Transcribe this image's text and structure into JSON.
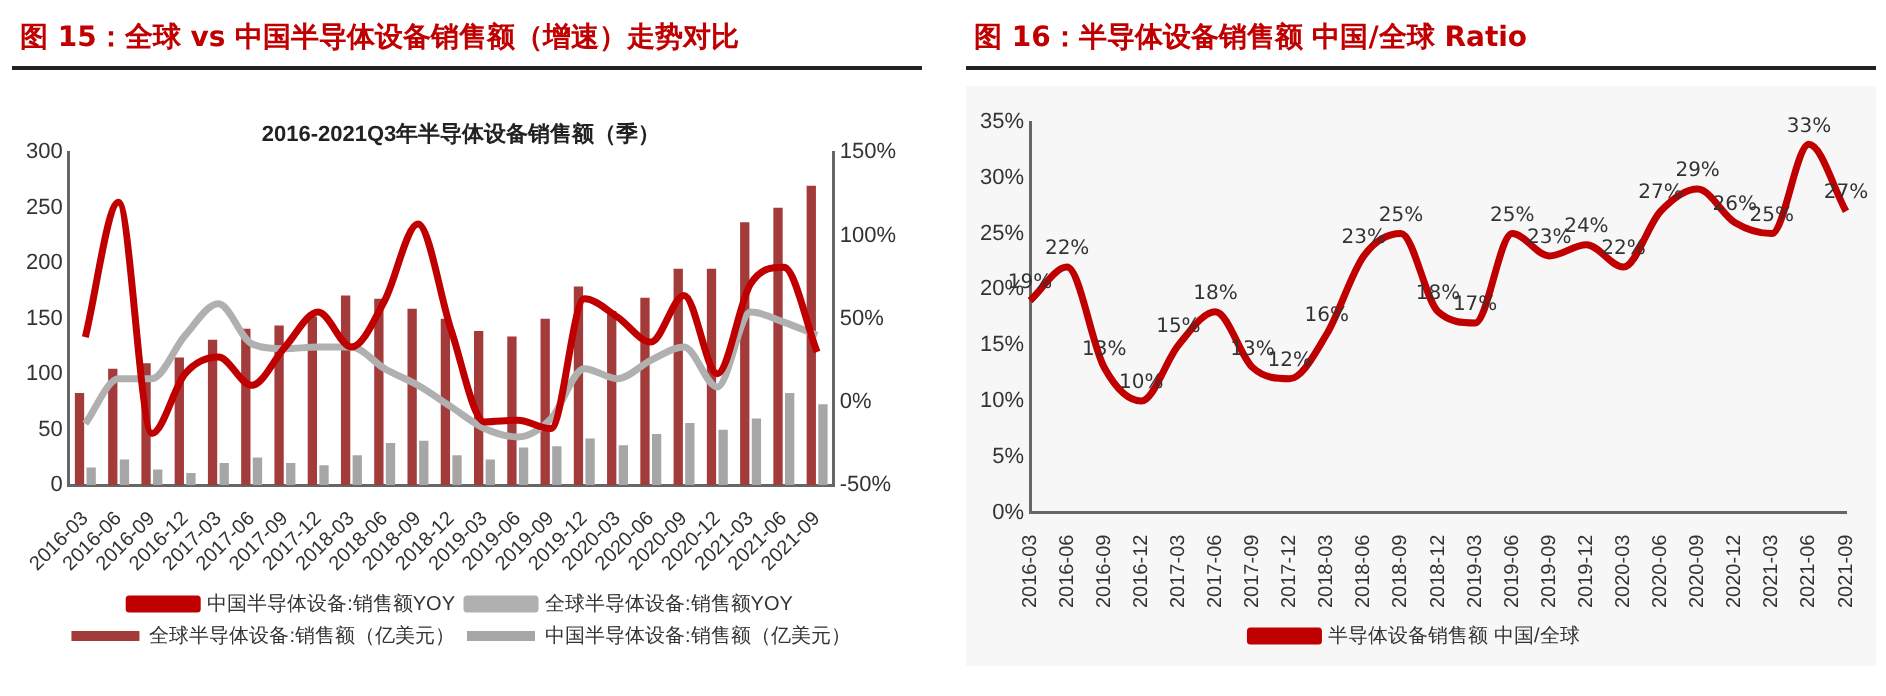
{
  "chart_data": [
    {
      "type": "bar",
      "title": "图 15：全球 vs 中国半导体设备销售额（增速）走势对比",
      "subtitle": "2016-2021Q3年半导体设备销售额（季）",
      "categories": [
        "2016-03",
        "2016-06",
        "2016-09",
        "2016-12",
        "2017-03",
        "2017-06",
        "2017-09",
        "2017-12",
        "2018-03",
        "2018-06",
        "2018-09",
        "2018-12",
        "2019-03",
        "2019-06",
        "2019-09",
        "2019-12",
        "2020-03",
        "2020-06",
        "2020-09",
        "2020-12",
        "2021-03",
        "2021-06",
        "2021-09"
      ],
      "series": [
        {
          "name": "全球半导体设备:销售额（亿美元）",
          "color": "#a33b3b",
          "type": "bar",
          "values": [
            83,
            105,
            110,
            115,
            131,
            141,
            144,
            152,
            171,
            168,
            159,
            150,
            139,
            134,
            150,
            179,
            157,
            169,
            195,
            195,
            237,
            250,
            270
          ]
        },
        {
          "name": "中国半导体设备:销售额（亿美元）",
          "color": "#a6a6a6",
          "type": "bar",
          "values": [
            16,
            23,
            14,
            11,
            20,
            25,
            20,
            18,
            27,
            38,
            40,
            27,
            23,
            34,
            35,
            42,
            36,
            46,
            56,
            50,
            60,
            83,
            73
          ]
        },
        {
          "name": "中国半导体设备:销售额YOY",
          "color": "#c00000",
          "type": "line",
          "axis": "y2",
          "values": [
            39,
            120,
            -19,
            17,
            27,
            10,
            33,
            54,
            33,
            61,
            107,
            43,
            -12,
            -11,
            -16,
            62,
            51,
            36,
            64,
            17,
            71,
            81,
            30
          ]
        },
        {
          "name": "全球半导体设备:销售额YOY",
          "color": "#b0b0b0",
          "type": "line",
          "axis": "y2",
          "values": [
            -13,
            14,
            14,
            40,
            59,
            35,
            32,
            33,
            33,
            20,
            10,
            -3,
            -16,
            -21,
            -10,
            20,
            14,
            25,
            33,
            9,
            54,
            48,
            40
          ]
        }
      ],
      "ylim": [
        0,
        300
      ],
      "yticks": [
        0,
        50,
        100,
        150,
        200,
        250,
        300
      ],
      "y2lim": [
        -50,
        150
      ],
      "y2ticks": [
        {
          "value": -50,
          "label": "-50%"
        },
        {
          "value": 0,
          "label": "0%"
        },
        {
          "value": 50,
          "label": "50%"
        },
        {
          "value": 100,
          "label": "100%"
        },
        {
          "value": 150,
          "label": "150%"
        }
      ],
      "grid": false,
      "legend": "bottom",
      "marker": "none"
    },
    {
      "type": "line",
      "title": "图 16：半导体设备销售额  中国/全球  Ratio",
      "categories": [
        "2016-03",
        "2016-06",
        "2016-09",
        "2016-12",
        "2017-03",
        "2017-06",
        "2017-09",
        "2017-12",
        "2018-03",
        "2018-06",
        "2018-09",
        "2018-12",
        "2019-03",
        "2019-06",
        "2019-09",
        "2019-12",
        "2020-03",
        "2020-06",
        "2020-09",
        "2020-12",
        "2021-03",
        "2021-06",
        "2021-09"
      ],
      "series": [
        {
          "name": "半导体设备销售额 中国/全球",
          "color": "#c00000",
          "values": [
            19,
            22,
            13,
            10,
            15,
            18,
            13,
            12,
            16,
            23,
            25,
            18,
            17,
            25,
            23,
            24,
            22,
            27,
            29,
            26,
            25,
            33,
            27
          ],
          "value_labels": [
            "19%",
            "22%",
            "13%",
            "10%",
            "15%",
            "18%",
            "13%",
            "12%",
            "16%",
            "23%",
            "25%",
            "18%",
            "17%",
            "25%",
            "23%",
            "24%",
            "22%",
            "27%",
            "29%",
            "26%",
            "25%",
            "33%",
            "27%"
          ]
        }
      ],
      "ylim": [
        0,
        35
      ],
      "yticks": [
        {
          "value": 0,
          "label": "0%"
        },
        {
          "value": 5,
          "label": "5%"
        },
        {
          "value": 10,
          "label": "10%"
        },
        {
          "value": 15,
          "label": "15%"
        },
        {
          "value": 20,
          "label": "20%"
        },
        {
          "value": 25,
          "label": "25%"
        },
        {
          "value": 30,
          "label": "30%"
        },
        {
          "value": 35,
          "label": "35%"
        }
      ],
      "grid": false,
      "legend": "bottom",
      "marker": "none"
    }
  ]
}
